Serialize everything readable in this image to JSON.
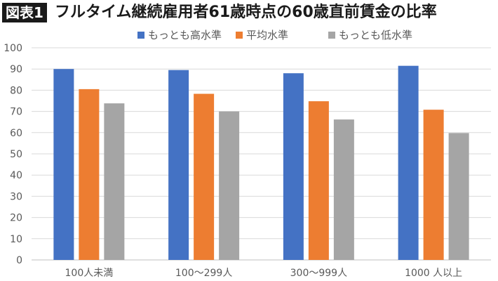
{
  "figure_label": "図表1",
  "title": "フルタイム継続雇用者61歳時点の60歳直前賃金の比率",
  "chart_data": {
    "type": "bar",
    "categories": [
      "100人未満",
      "100〜299人",
      "300〜999人",
      "1000 人以上"
    ],
    "series": [
      {
        "name": "もっとも高水準",
        "color": "#4472C4",
        "values": [
          90,
          89.5,
          88,
          91.5
        ]
      },
      {
        "name": "平均水準",
        "color": "#ED7D31",
        "values": [
          80.5,
          78.3,
          74.8,
          70.8
        ]
      },
      {
        "name": "もっとも低水準",
        "color": "#A5A5A5",
        "values": [
          73.8,
          70,
          66.2,
          59.8
        ]
      }
    ],
    "ylim": [
      0,
      100
    ],
    "yticks": [
      0,
      10,
      20,
      30,
      40,
      50,
      60,
      70,
      80,
      90,
      100
    ],
    "grid": true,
    "legend_position": "top"
  }
}
